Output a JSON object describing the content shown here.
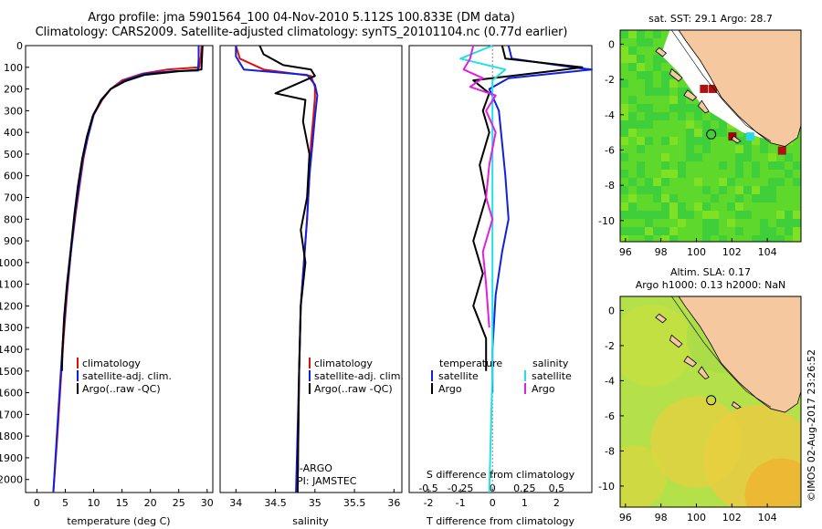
{
  "title": {
    "line1": "Argo profile: jma 5901564_100 04-Nov-2010 5.112S 100.833E (DM data)",
    "line2": "Climatology: CARS2009. Satellite-adjusted climatology: synTS_20101104.nc (0.77d earlier)"
  },
  "colors": {
    "climatology": "#e01010",
    "satellite": "#1020e0",
    "argo": "#000000",
    "satellite_salinity": "#20e0e8",
    "argo_salinity": "#e020e0",
    "land": "#f5c8a0"
  },
  "depth_axis": {
    "ticks": [
      0,
      100,
      200,
      300,
      400,
      500,
      600,
      700,
      800,
      900,
      1000,
      1100,
      1200,
      1300,
      1400,
      1500,
      1600,
      1700,
      1800,
      1900,
      2000
    ],
    "range": [
      0,
      2060
    ]
  },
  "chart_data": [
    {
      "type": "line",
      "name": "temperature-profile",
      "xlabel": "temperature (deg C)",
      "ylabel": "depth",
      "xlim": [
        -2,
        31
      ],
      "ylim": [
        2060,
        0
      ],
      "xticks": [
        0,
        5,
        10,
        15,
        20,
        25,
        30
      ],
      "legend": [
        "climatology",
        "satellite-adj. clim.",
        "Argo(..raw -QC)"
      ],
      "series": [
        {
          "name": "climatology",
          "color_key": "climatology",
          "points": [
            [
              29.0,
              0
            ],
            [
              28.9,
              50
            ],
            [
              28.6,
              100
            ],
            [
              23,
              110
            ],
            [
              18.5,
              130
            ],
            [
              15,
              160
            ],
            [
              13,
              200
            ],
            [
              11.5,
              250
            ],
            [
              10,
              320
            ],
            [
              9,
              420
            ],
            [
              8.2,
              520
            ],
            [
              7.5,
              650
            ],
            [
              6.8,
              780
            ],
            [
              6,
              950
            ],
            [
              5.3,
              1150
            ],
            [
              4.7,
              1350
            ],
            [
              4.2,
              1550
            ],
            [
              3.6,
              1800
            ],
            [
              2.9,
              2060
            ]
          ]
        },
        {
          "name": "satellite-adj. clim.",
          "color_key": "satellite",
          "points": [
            [
              28.5,
              0
            ],
            [
              28.5,
              60
            ],
            [
              28.4,
              115
            ],
            [
              24,
              118
            ],
            [
              19,
              130
            ],
            [
              15.5,
              160
            ],
            [
              13,
              200
            ],
            [
              11.3,
              250
            ],
            [
              10,
              320
            ],
            [
              9,
              420
            ],
            [
              8.1,
              520
            ],
            [
              7.4,
              650
            ],
            [
              6.7,
              780
            ],
            [
              6,
              950
            ],
            [
              5.2,
              1150
            ],
            [
              4.6,
              1350
            ],
            [
              4.1,
              1550
            ],
            [
              3.5,
              1800
            ],
            [
              2.9,
              2060
            ]
          ]
        },
        {
          "name": "Argo(..raw -QC)",
          "color_key": "argo",
          "points": [
            [
              29.2,
              0
            ],
            [
              29.1,
              50
            ],
            [
              29.0,
              110
            ],
            [
              25,
              118
            ],
            [
              19,
              135
            ],
            [
              15.5,
              165
            ],
            [
              13,
              200
            ],
            [
              11.4,
              250
            ],
            [
              9.9,
              320
            ],
            [
              8.8,
              420
            ],
            [
              8.0,
              520
            ],
            [
              7.2,
              650
            ],
            [
              6.6,
              780
            ],
            [
              6.0,
              930
            ],
            [
              5.3,
              1100
            ],
            [
              4.8,
              1250
            ],
            [
              4.5,
              1400
            ],
            [
              4.4,
              1500
            ]
          ]
        }
      ]
    },
    {
      "type": "line",
      "name": "salinity-profile",
      "xlabel": "salinity",
      "xlim": [
        33.8,
        36.1
      ],
      "ylim": [
        2060,
        0
      ],
      "xticks": [
        34,
        34.5,
        35,
        35.5,
        36
      ],
      "legend": [
        "climatology",
        "satellite-adj. clim.",
        "Argo(..raw -QC)"
      ],
      "annotations": [
        "J-ARGO",
        "PI: JAMSTEC"
      ],
      "series": [
        {
          "name": "climatology",
          "color_key": "climatology",
          "points": [
            [
              34.0,
              0
            ],
            [
              34.05,
              60
            ],
            [
              34.35,
              110
            ],
            [
              34.95,
              140
            ],
            [
              35.0,
              190
            ],
            [
              35.0,
              240
            ],
            [
              34.98,
              330
            ],
            [
              34.95,
              450
            ],
            [
              34.93,
              600
            ],
            [
              34.9,
              800
            ],
            [
              34.86,
              1000
            ],
            [
              34.82,
              1200
            ],
            [
              34.8,
              1500
            ],
            [
              34.78,
              2060
            ]
          ]
        },
        {
          "name": "satellite-adj. clim.",
          "color_key": "satellite",
          "points": [
            [
              34.0,
              0
            ],
            [
              34.0,
              50
            ],
            [
              34.1,
              110
            ],
            [
              34.9,
              135
            ],
            [
              35.0,
              180
            ],
            [
              35.03,
              230
            ],
            [
              35.0,
              330
            ],
            [
              34.97,
              450
            ],
            [
              34.93,
              600
            ],
            [
              34.9,
              800
            ],
            [
              34.86,
              1000
            ],
            [
              34.82,
              1200
            ],
            [
              34.8,
              1500
            ],
            [
              34.76,
              2060
            ]
          ]
        },
        {
          "name": "Argo(..raw -QC)",
          "color_key": "argo",
          "points": [
            [
              34.3,
              0
            ],
            [
              34.35,
              40
            ],
            [
              34.6,
              90
            ],
            [
              34.95,
              110
            ],
            [
              35.0,
              140
            ],
            [
              34.75,
              180
            ],
            [
              34.5,
              220
            ],
            [
              34.88,
              250
            ],
            [
              34.85,
              350
            ],
            [
              34.93,
              500
            ],
            [
              34.9,
              700
            ],
            [
              34.82,
              850
            ],
            [
              34.88,
              1000
            ],
            [
              34.82,
              1200
            ],
            [
              34.8,
              1500
            ],
            [
              34.78,
              2060
            ]
          ]
        }
      ]
    },
    {
      "type": "line",
      "name": "difference-profile",
      "xlabel": "T difference from climatology",
      "top_xlabel": "S difference from climatology",
      "xlim": [
        -2.6,
        3.1
      ],
      "ylim": [
        2060,
        0
      ],
      "xticks": [
        -2,
        -1,
        0,
        1,
        2
      ],
      "top_xtick_labels": [
        "-0.5",
        "-0.25",
        "0",
        "0.25",
        "0.5"
      ],
      "top_xtick_positions": [
        -2,
        -1,
        0,
        1,
        2
      ],
      "legend_temperature": {
        "heading": "temperature",
        "items": [
          "satellite",
          "Argo"
        ]
      },
      "legend_salinity": {
        "heading": "salinity",
        "items": [
          "satellite",
          "Argo"
        ]
      },
      "series": [
        {
          "name": "temperature satellite",
          "color_key": "satellite",
          "points": [
            [
              0.5,
              0
            ],
            [
              0.6,
              60
            ],
            [
              2.5,
              100
            ],
            [
              3.1,
              110
            ],
            [
              0.5,
              150
            ],
            [
              -0.1,
              200
            ],
            [
              0.2,
              300
            ],
            [
              0.3,
              450
            ],
            [
              0.4,
              600
            ],
            [
              0.5,
              800
            ],
            [
              0.3,
              950
            ],
            [
              0.1,
              1150
            ],
            [
              0.0,
              1400
            ],
            [
              0.0,
              1600
            ]
          ]
        },
        {
          "name": "temperature Argo",
          "color_key": "argo",
          "points": [
            [
              0.3,
              0
            ],
            [
              0.4,
              60
            ],
            [
              2.8,
              100
            ],
            [
              2.0,
              115
            ],
            [
              -0.6,
              160
            ],
            [
              -0.1,
              220
            ],
            [
              -0.3,
              300
            ],
            [
              -0.1,
              400
            ],
            [
              -0.4,
              550
            ],
            [
              -0.2,
              700
            ],
            [
              -0.6,
              900
            ],
            [
              -0.3,
              1050
            ],
            [
              -0.6,
              1200
            ],
            [
              -0.2,
              1350
            ],
            [
              -0.2,
              1500
            ]
          ]
        },
        {
          "name": "salinity satellite",
          "color_key": "satellite_salinity",
          "points": [
            [
              0.0,
              0
            ],
            [
              -1.0,
              60
            ],
            [
              0.4,
              110
            ],
            [
              0.0,
              160
            ],
            [
              0.0,
              400
            ],
            [
              0.0,
              1000
            ],
            [
              0.0,
              1500
            ],
            [
              -0.1,
              2060
            ]
          ]
        },
        {
          "name": "salinity Argo",
          "color_key": "argo_salinity",
          "points": [
            [
              -0.6,
              0
            ],
            [
              -0.7,
              60
            ],
            [
              -0.9,
              110
            ],
            [
              -0.3,
              150
            ],
            [
              -0.7,
              190
            ],
            [
              0.1,
              230
            ],
            [
              -0.2,
              300
            ],
            [
              0.1,
              400
            ],
            [
              -0.1,
              550
            ],
            [
              -0.2,
              700
            ],
            [
              0.0,
              800
            ],
            [
              -0.3,
              950
            ],
            [
              -0.2,
              1100
            ],
            [
              -0.1,
              1300
            ]
          ]
        }
      ]
    },
    {
      "type": "heatmap",
      "name": "sst-map",
      "title": "sat. SST: 29.1  Argo: 28.7",
      "xlim": [
        95.7,
        105.9
      ],
      "ylim": [
        -11.2,
        0.8
      ],
      "xticks": [
        96,
        98,
        100,
        102,
        104
      ],
      "yticks": [
        0,
        -2,
        -4,
        -6,
        -8,
        -10
      ],
      "argo_position": [
        100.833,
        -5.112
      ]
    },
    {
      "type": "heatmap",
      "name": "sla-map",
      "title_line1": "Altim. SLA: 0.17",
      "title_line2": "Argo h1000: 0.13 h2000: NaN",
      "xlim": [
        95.7,
        105.9
      ],
      "ylim": [
        -11.2,
        0.8
      ],
      "xticks": [
        96,
        98,
        100,
        102,
        104
      ],
      "yticks": [
        0,
        -2,
        -4,
        -6,
        -8,
        -10
      ],
      "argo_position": [
        100.833,
        -5.112
      ]
    }
  ],
  "footer": "©IMOS 02-Aug-2017 23:26:52"
}
